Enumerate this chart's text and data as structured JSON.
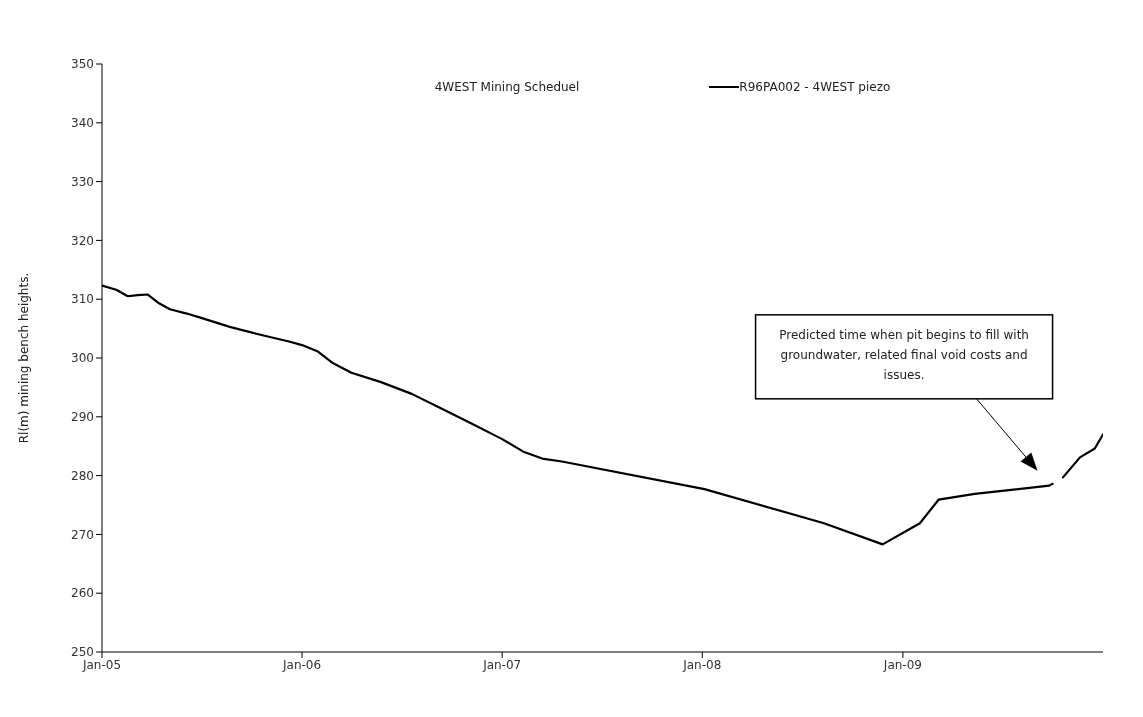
{
  "chart_data": {
    "type": "line",
    "ylabel": "Rl(m) mining bench heights.",
    "x": [
      "2005-01-01",
      "2005-01-27",
      "2005-02-17",
      "2005-03-07",
      "2005-03-25",
      "2005-04-15",
      "2005-05-05",
      "2005-06-03",
      "2005-06-28",
      "2005-08-22",
      "2005-10-15",
      "2005-12-08",
      "2006-01-01",
      "2006-01-30",
      "2006-02-25",
      "2006-04-01",
      "2006-05-25",
      "2006-07-20",
      "2006-09-12",
      "2006-11-05",
      "2007-01-01",
      "2007-02-10",
      "2007-03-15",
      "2007-04-20",
      "2008-01-05",
      "2008-08-10",
      "2008-11-25",
      "2009-02-01",
      "2009-03-07",
      "2009-05-12",
      "2009-09-25",
      "2009-10-01",
      "2009-10-10",
      "2009-10-20",
      "2009-11-20",
      "2009-12-17",
      "2010-01-01"
    ],
    "series": [
      {
        "name": "R96PA002 - 4WEST piezo",
        "color": "#000000",
        "values": [
          312.3,
          311.6,
          310.5,
          310.7,
          310.8,
          309.3,
          308.3,
          307.6,
          306.9,
          305.3,
          304.0,
          302.8,
          302.2,
          301.1,
          299.2,
          297.5,
          295.9,
          293.9,
          291.4,
          288.9,
          286.2,
          284.0,
          282.9,
          282.4,
          277.7,
          271.9,
          268.3,
          271.9,
          275.9,
          276.9,
          278.3,
          278.6,
          null,
          279.7,
          283.1,
          284.6,
          287.0
        ]
      }
    ],
    "xlim": [
      "2005-01-01",
      "2010-01-01"
    ],
    "xticks": [
      {
        "value": "2005-01-01",
        "label": "Jan-05"
      },
      {
        "value": "2006-01-01",
        "label": "Jan-06"
      },
      {
        "value": "2007-01-01",
        "label": "Jan-07"
      },
      {
        "value": "2008-01-01",
        "label": "Jan-08"
      },
      {
        "value": "2009-01-01",
        "label": "Jan-09"
      }
    ],
    "ylim": [
      250,
      350
    ],
    "yticks": [
      250,
      260,
      270,
      280,
      290,
      300,
      310,
      320,
      330,
      340,
      350
    ],
    "grid": false,
    "legend": "top",
    "marker": "none",
    "line_style": "solid",
    "annotations": [
      "4WEST Mining Scheduel",
      "Predicted time when pit begins to fill with groundwater, related final void costs and issues."
    ]
  }
}
